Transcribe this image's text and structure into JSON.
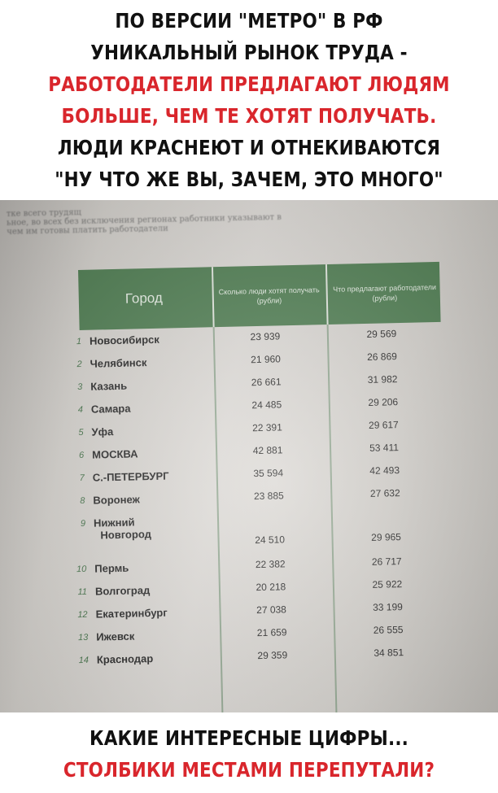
{
  "caption_top": [
    {
      "text": "ПО ВЕРСИИ \"МЕТРО\" В РФ",
      "color": "#111111"
    },
    {
      "text": "УНИКАЛЬНЫЙ РЫНОК ТРУДА -",
      "color": "#111111"
    },
    {
      "text": "РАБОТОДАТЕЛИ ПРЕДЛАГАЮТ ЛЮДЯМ",
      "color": "#d9262c"
    },
    {
      "text": "БОЛЬШЕ, ЧЕМ ТЕ ХОТЯТ ПОЛУЧАТЬ.",
      "color": "#d9262c"
    },
    {
      "text": "ЛЮДИ КРАСНЕЮТ И ОТНЕКИВАЮТСЯ",
      "color": "#111111"
    },
    {
      "text": "\"НУ ЧТО ЖЕ ВЫ, ЗАЧЕМ, ЭТО МНОГО\"",
      "color": "#111111"
    }
  ],
  "caption_bottom": [
    {
      "text": "КАКИЕ ИНТЕРЕСНЫЕ ЦИФРЫ...",
      "color": "#111111"
    },
    {
      "text": "СТОЛБИКИ МЕСТАМИ ПЕРЕПУТАЛИ?",
      "color": "#d9262c"
    }
  ],
  "intro_lines": [
    "тке всего трудящ",
    "ьное, во всех без исключения регионах работники указывают в",
    "чем им готовы платить работодатели"
  ],
  "table": {
    "header_color": "#4a7a4d",
    "headers": {
      "city": "Город",
      "want": "Сколько люди хотят получать (рубли)",
      "offer": "Что предлагают работодатели (рубли)"
    },
    "rows": [
      {
        "num": "1",
        "city": "Новосибирск",
        "want": "23 939",
        "offer": "29 569"
      },
      {
        "num": "2",
        "city": "Челябинск",
        "want": "21 960",
        "offer": "26 869"
      },
      {
        "num": "3",
        "city": "Казань",
        "want": "26 661",
        "offer": "31 982"
      },
      {
        "num": "4",
        "city": "Самара",
        "want": "24 485",
        "offer": "29 206"
      },
      {
        "num": "5",
        "city": "Уфа",
        "want": "22 391",
        "offer": "29 617"
      },
      {
        "num": "6",
        "city": "МОСКВА",
        "want": "42 881",
        "offer": "53 411"
      },
      {
        "num": "7",
        "city": "С.-ПЕТЕРБУРГ",
        "want": "35 594",
        "offer": "42 493"
      },
      {
        "num": "8",
        "city": "Воронеж",
        "want": "23 885",
        "offer": "27 632"
      },
      {
        "num": "9",
        "city": "Нижний",
        "city2": "Новгород",
        "want": "24 510",
        "offer": "29 965"
      },
      {
        "num": "10",
        "city": "Пермь",
        "want": "22 382",
        "offer": "26 717"
      },
      {
        "num": "11",
        "city": "Волгоград",
        "want": "20 218",
        "offer": "25 922"
      },
      {
        "num": "12",
        "city": "Екатеринбург",
        "want": "27 038",
        "offer": "33 199"
      },
      {
        "num": "13",
        "city": "Ижевск",
        "want": "21 659",
        "offer": "26 555"
      },
      {
        "num": "14",
        "city": "Краснодар",
        "want": "29 359",
        "offer": "34 851"
      }
    ]
  }
}
